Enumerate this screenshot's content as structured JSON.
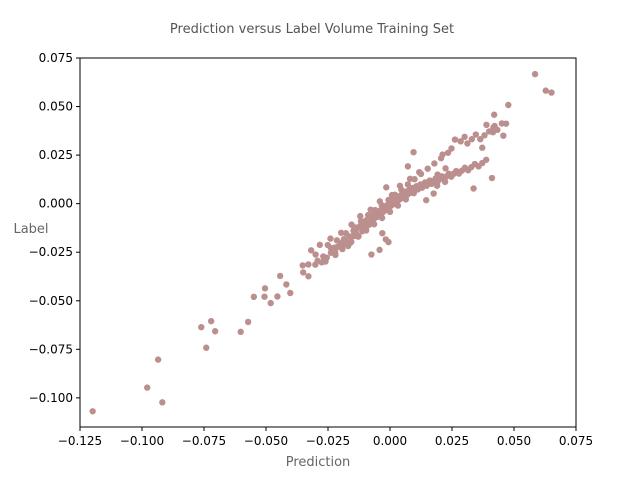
{
  "chart_data": {
    "type": "scatter",
    "title": "Prediction versus Label Volume Training Set",
    "xlabel": "Prediction",
    "ylabel": "Label",
    "xlim": [
      -0.125,
      0.075
    ],
    "ylim": [
      -0.115,
      0.075
    ],
    "xticks": [
      -0.125,
      -0.1,
      -0.075,
      -0.05,
      -0.025,
      0.0,
      0.025,
      0.05,
      0.075
    ],
    "xtick_labels": [
      "−0.125",
      "−0.100",
      "−0.075",
      "−0.050",
      "−0.025",
      "0.000",
      "0.025",
      "0.050",
      "0.075"
    ],
    "yticks": [
      -0.1,
      -0.075,
      -0.05,
      -0.025,
      0.0,
      0.025,
      0.05,
      0.075
    ],
    "ytick_labels": [
      "−0.100",
      "−0.075",
      "−0.050",
      "−0.025",
      "0.000",
      "0.025",
      "0.050",
      "0.075"
    ],
    "grid": false,
    "legend": "none",
    "point_color": "#bc8f8f",
    "series": [
      {
        "points": [
          [
            -0.1199,
            -0.1069
          ],
          [
            -0.0979,
            -0.0947
          ],
          [
            -0.0918,
            -0.1023
          ],
          [
            -0.0935,
            -0.0803
          ],
          [
            -0.0741,
            -0.0742
          ],
          [
            -0.0761,
            -0.0636
          ],
          [
            -0.0721,
            -0.0605
          ],
          [
            -0.0705,
            -0.0657
          ],
          [
            -0.0602,
            -0.066
          ],
          [
            -0.0572,
            -0.0609
          ],
          [
            -0.0549,
            -0.048
          ],
          [
            -0.0506,
            -0.0479
          ],
          [
            -0.0504,
            -0.0436
          ],
          [
            -0.0481,
            -0.0512
          ],
          [
            -0.0454,
            -0.0478
          ],
          [
            -0.0443,
            -0.0372
          ],
          [
            -0.0418,
            -0.0416
          ],
          [
            -0.0402,
            -0.046
          ],
          [
            -0.035,
            -0.0354
          ],
          [
            -0.0329,
            -0.0374
          ],
          [
            -0.0329,
            -0.0313
          ],
          [
            -0.0301,
            -0.0314
          ],
          [
            -0.0292,
            -0.0294
          ],
          [
            -0.0275,
            -0.0302
          ],
          [
            -0.0269,
            -0.0272
          ],
          [
            -0.026,
            -0.0298
          ],
          [
            -0.0255,
            -0.0278
          ],
          [
            -0.0238,
            -0.0253
          ],
          [
            -0.0238,
            -0.0229
          ],
          [
            -0.0224,
            -0.0227
          ],
          [
            -0.0221,
            -0.0248
          ],
          [
            -0.022,
            -0.0264
          ],
          [
            -0.0213,
            -0.0223
          ],
          [
            -0.0199,
            -0.0205
          ],
          [
            -0.0193,
            -0.0218
          ],
          [
            -0.019,
            -0.0199
          ],
          [
            -0.0186,
            -0.0183
          ],
          [
            -0.0175,
            -0.0198
          ],
          [
            -0.0169,
            -0.0218
          ],
          [
            -0.0164,
            -0.0169
          ],
          [
            -0.0156,
            -0.0196
          ],
          [
            -0.0153,
            -0.017
          ],
          [
            -0.0147,
            -0.0141
          ],
          [
            -0.014,
            -0.0166
          ],
          [
            -0.0138,
            -0.0148
          ],
          [
            -0.0132,
            -0.0124
          ],
          [
            -0.0127,
            -0.0167
          ],
          [
            -0.0122,
            -0.0118
          ],
          [
            -0.0116,
            -0.0107
          ],
          [
            -0.0112,
            -0.0142
          ],
          [
            -0.0109,
            -0.0119
          ],
          [
            -0.0104,
            -0.0099
          ],
          [
            -0.01,
            -0.0131
          ],
          [
            -0.0096,
            -0.0086
          ],
          [
            -0.0092,
            -0.0114
          ],
          [
            -0.009,
            -0.0099
          ],
          [
            -0.0086,
            -0.0085
          ],
          [
            -0.0083,
            -0.0107
          ],
          [
            -0.008,
            -0.0078
          ],
          [
            -0.0076,
            -0.0094
          ],
          [
            -0.0074,
            -0.0065
          ],
          [
            -0.007,
            -0.0082
          ],
          [
            -0.0068,
            -0.0069
          ],
          [
            -0.0064,
            -0.0056
          ],
          [
            -0.0062,
            -0.0075
          ],
          [
            -0.0058,
            -0.0062
          ],
          [
            -0.0056,
            -0.0049
          ],
          [
            -0.0052,
            -0.0068
          ],
          [
            -0.005,
            -0.0054
          ],
          [
            -0.0047,
            -0.0043
          ],
          [
            -0.0044,
            -0.006
          ],
          [
            -0.0041,
            -0.0047
          ],
          [
            -0.0038,
            -0.0034
          ],
          [
            -0.0035,
            -0.0052
          ],
          [
            -0.0032,
            -0.004
          ],
          [
            -0.003,
            -0.0026
          ],
          [
            -0.0027,
            -0.0042
          ],
          [
            -0.0024,
            -0.0031
          ],
          [
            -0.0022,
            -0.0018
          ],
          [
            -0.0019,
            -0.0034
          ],
          [
            -0.0016,
            -0.0022
          ],
          [
            -0.0014,
            -0.001
          ],
          [
            -0.0011,
            -0.0028
          ],
          [
            -0.0008,
            -0.0015
          ],
          [
            -0.0006,
            -0.0002
          ],
          [
            -0.0003,
            -0.0019
          ],
          [
            0.0,
            -0.0006
          ],
          [
            0.0002,
            0.0006
          ],
          [
            0.0005,
            -0.001
          ],
          [
            0.0008,
            0.0002
          ],
          [
            0.001,
            0.0014
          ],
          [
            0.0013,
            -0.0002
          ],
          [
            0.0016,
            0.001
          ],
          [
            0.0018,
            0.0022
          ],
          [
            0.0021,
            0.0006
          ],
          [
            0.0024,
            0.0018
          ],
          [
            0.0026,
            0.003
          ],
          [
            0.003,
            0.0014
          ],
          [
            0.0033,
            0.0026
          ],
          [
            0.0036,
            0.0038
          ],
          [
            0.0039,
            0.0022
          ],
          [
            0.0042,
            0.0034
          ],
          [
            0.0046,
            0.0046
          ],
          [
            0.0049,
            0.003
          ],
          [
            0.0052,
            0.0043
          ],
          [
            0.0056,
            0.0055
          ],
          [
            0.0059,
            0.0039
          ],
          [
            0.0063,
            0.0051
          ],
          [
            0.0067,
            0.0063
          ],
          [
            0.0071,
            0.0047
          ],
          [
            0.0075,
            0.006
          ],
          [
            0.0079,
            0.0072
          ],
          [
            0.0083,
            0.0056
          ],
          [
            0.0088,
            0.0068
          ],
          [
            0.0092,
            0.0081
          ],
          [
            0.0097,
            0.0064
          ],
          [
            0.0102,
            0.0077
          ],
          [
            0.0107,
            0.009
          ],
          [
            0.0112,
            0.0073
          ],
          [
            0.0118,
            0.0086
          ],
          [
            0.0123,
            0.0099
          ],
          [
            0.0129,
            0.0082
          ],
          [
            0.0135,
            0.0096
          ],
          [
            0.0141,
            0.0109
          ],
          [
            0.0148,
            0.0092
          ],
          [
            0.0155,
            0.0106
          ],
          [
            0.0161,
            0.0119
          ],
          [
            0.0168,
            0.0102
          ],
          [
            0.0176,
            0.0116
          ],
          [
            0.0184,
            0.013
          ],
          [
            0.0192,
            0.0113
          ],
          [
            0.02,
            0.0127
          ],
          [
            0.0209,
            0.0141
          ],
          [
            0.0218,
            0.0125
          ],
          [
            0.0227,
            0.014
          ],
          [
            0.0237,
            0.0154
          ],
          [
            0.0247,
            0.0139
          ],
          [
            0.0257,
            0.0154
          ],
          [
            0.0267,
            0.0168
          ],
          [
            0.0278,
            0.0155
          ],
          [
            0.029,
            0.017
          ],
          [
            0.0302,
            0.0185
          ],
          [
            0.0315,
            0.0172
          ],
          [
            0.0328,
            0.0188
          ],
          [
            0.0342,
            0.0204
          ],
          [
            0.0357,
            0.0192
          ],
          [
            0.0372,
            0.0209
          ],
          [
            0.0388,
            0.0226
          ],
          [
            -0.0352,
            -0.0318
          ],
          [
            -0.03,
            -0.0262
          ],
          [
            -0.0251,
            -0.0213
          ],
          [
            -0.0214,
            -0.0189
          ],
          [
            -0.0178,
            -0.0152
          ],
          [
            -0.0145,
            -0.0121
          ],
          [
            -0.0117,
            -0.009
          ],
          [
            -0.0088,
            -0.0059
          ],
          [
            -0.006,
            -0.0033
          ],
          [
            -0.0033,
            -0.0008
          ],
          [
            -0.0006,
            0.0019
          ],
          [
            0.002,
            0.0046
          ],
          [
            0.0046,
            0.0072
          ],
          [
            0.0072,
            0.0099
          ],
          [
            0.0099,
            0.0126
          ],
          [
            0.0125,
            0.0153
          ],
          [
            0.0152,
            0.018
          ],
          [
            0.0179,
            0.0207
          ],
          [
            0.0206,
            0.0234
          ],
          [
            0.0234,
            0.0262
          ],
          [
            -0.0192,
            -0.0234
          ],
          [
            -0.016,
            -0.0202
          ],
          [
            -0.0128,
            -0.017
          ],
          [
            -0.0096,
            -0.0138
          ],
          [
            -0.0064,
            -0.0106
          ],
          [
            -0.0032,
            -0.0074
          ],
          [
            0.0,
            -0.0042
          ],
          [
            0.0032,
            -0.001
          ],
          [
            0.0064,
            0.0022
          ],
          [
            0.0096,
            0.0054
          ],
          [
            0.0128,
            0.0086
          ],
          [
            0.016,
            0.0118
          ],
          [
            0.0192,
            0.015
          ],
          [
            0.0224,
            0.0182
          ],
          [
            -0.0318,
            -0.024
          ],
          [
            -0.0283,
            -0.0212
          ],
          [
            -0.024,
            -0.018
          ],
          [
            -0.0197,
            -0.015
          ],
          [
            -0.0155,
            -0.0108
          ],
          [
            -0.012,
            -0.0064
          ],
          [
            -0.0078,
            -0.0031
          ],
          [
            -0.0041,
            0.0012
          ],
          [
            0.0008,
            0.0044
          ],
          [
            0.004,
            0.0092
          ],
          [
            0.0081,
            0.0128
          ],
          [
            0.0118,
            0.0162
          ],
          [
            -0.0042,
            -0.0238
          ],
          [
            -0.0006,
            -0.0198
          ],
          [
            -0.0017,
            -0.0184
          ],
          [
            -0.0031,
            -0.0152
          ],
          [
            0.0146,
            0.0018
          ],
          [
            0.0176,
            0.0052
          ],
          [
            0.019,
            0.0092
          ],
          [
            0.0222,
            0.0112
          ],
          [
            0.0212,
            0.0253
          ],
          [
            0.0248,
            0.0284
          ],
          [
            0.0262,
            0.033
          ],
          [
            0.0285,
            0.0321
          ],
          [
            0.0301,
            0.0344
          ],
          [
            0.0312,
            0.031
          ],
          [
            0.033,
            0.0332
          ],
          [
            0.0346,
            0.0356
          ],
          [
            0.0364,
            0.0332
          ],
          [
            0.0372,
            0.0288
          ],
          [
            0.0381,
            0.0352
          ],
          [
            0.0389,
            0.0406
          ],
          [
            0.04,
            0.0372
          ],
          [
            0.0411,
            0.0132
          ],
          [
            0.0415,
            0.0368
          ],
          [
            0.0417,
            0.0393
          ],
          [
            0.042,
            0.0458
          ],
          [
            0.0422,
            0.04
          ],
          [
            0.0433,
            0.038
          ],
          [
            0.0451,
            0.0413
          ],
          [
            0.0457,
            0.035
          ],
          [
            0.0468,
            0.0412
          ],
          [
            0.0477,
            0.0508
          ],
          [
            0.0337,
            0.0078
          ],
          [
            0.0585,
            0.0667
          ],
          [
            0.0628,
            0.0582
          ],
          [
            0.0651,
            0.0572
          ],
          [
            0.0095,
            0.0265
          ],
          [
            0.0072,
            0.0192
          ],
          [
            -0.0015,
            0.0084
          ],
          [
            -0.0075,
            -0.0262
          ]
        ]
      }
    ]
  }
}
